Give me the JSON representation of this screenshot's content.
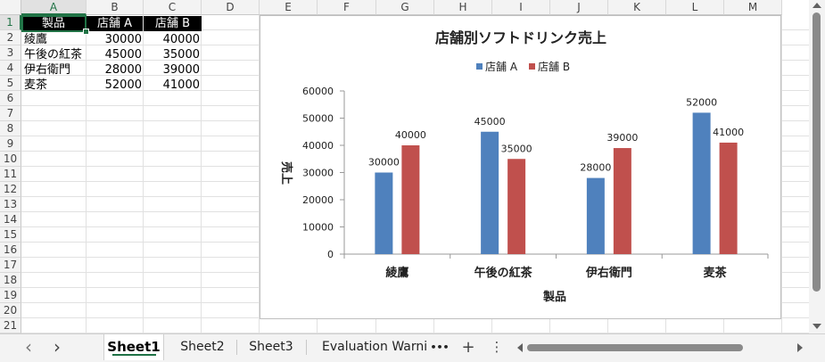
{
  "column_headers": [
    "A",
    "B",
    "C",
    "D",
    "E",
    "F",
    "G",
    "H",
    "I",
    "J",
    "K",
    "L",
    "M"
  ],
  "row_headers": [
    "1",
    "2",
    "3",
    "4",
    "5",
    "6",
    "7",
    "8",
    "9",
    "10",
    "11",
    "12",
    "13",
    "14",
    "15",
    "16",
    "17",
    "18",
    "19",
    "20",
    "21"
  ],
  "header_row": [
    "製品",
    "店舗 A",
    "店舗 B"
  ],
  "rows": [
    [
      "綾鷹",
      "30000",
      "40000"
    ],
    [
      "午後の紅茶",
      "45000",
      "35000"
    ],
    [
      "伊右衛門",
      "28000",
      "39000"
    ],
    [
      "麦茶",
      "52000",
      "41000"
    ]
  ],
  "chart_data": {
    "type": "bar",
    "title": "店舗別ソフトドリンク売上",
    "xlabel": "製品",
    "ylabel": "売上",
    "categories": [
      "綾鷹",
      "午後の紅茶",
      "伊右衛門",
      "麦茶"
    ],
    "series": [
      {
        "name": "店舗 A",
        "values": [
          30000,
          45000,
          28000,
          52000
        ],
        "color": "#4f81bd"
      },
      {
        "name": "店舗 B",
        "values": [
          40000,
          35000,
          39000,
          41000
        ],
        "color": "#c0504d"
      }
    ],
    "ylim": [
      0,
      60000
    ],
    "yticks": [
      "0",
      "10000",
      "20000",
      "30000",
      "40000",
      "50000",
      "60000"
    ],
    "legend_position": "top",
    "data_labels": true,
    "grid": false
  },
  "tabs": {
    "prev_icon": "‹",
    "next_icon": "›",
    "items": [
      "Sheet1",
      "Sheet2",
      "Sheet3",
      "Evaluation Warni"
    ],
    "active": "Sheet1",
    "more": "•••",
    "add": "+",
    "menu": "⋮"
  },
  "colors": {
    "selected_col": "#217346",
    "header_bg": "#f3f3f3"
  }
}
